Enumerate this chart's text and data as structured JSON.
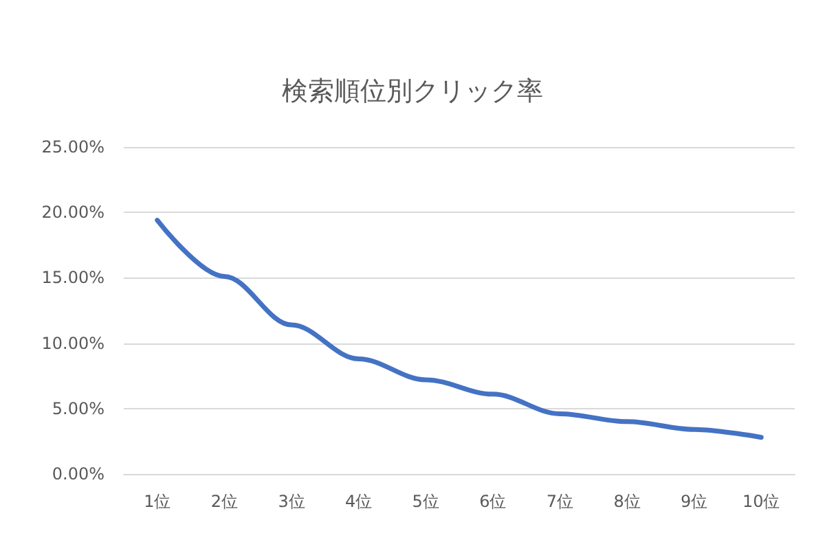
{
  "chart_data": {
    "type": "line",
    "title": "検索順位別クリック率",
    "categories": [
      "1位",
      "2位",
      "3位",
      "4位",
      "5位",
      "6位",
      "7位",
      "8位",
      "9位",
      "10位"
    ],
    "series": [
      {
        "color": "#4472c4",
        "values": [
          19.4,
          15.1,
          11.4,
          8.8,
          7.2,
          6.1,
          4.6,
          4.0,
          3.4,
          2.8
        ]
      }
    ],
    "ylim": [
      0,
      25
    ],
    "yticks": [
      {
        "value": 0,
        "label": "0.00%"
      },
      {
        "value": 5,
        "label": "5.00%"
      },
      {
        "value": 10,
        "label": "10.00%"
      },
      {
        "value": 15,
        "label": "15.00%"
      },
      {
        "value": 20,
        "label": "20.00%"
      },
      {
        "value": 25,
        "label": "25.00%"
      }
    ],
    "grid": "y",
    "legend": false,
    "marker": "none",
    "line_style": "solid"
  }
}
